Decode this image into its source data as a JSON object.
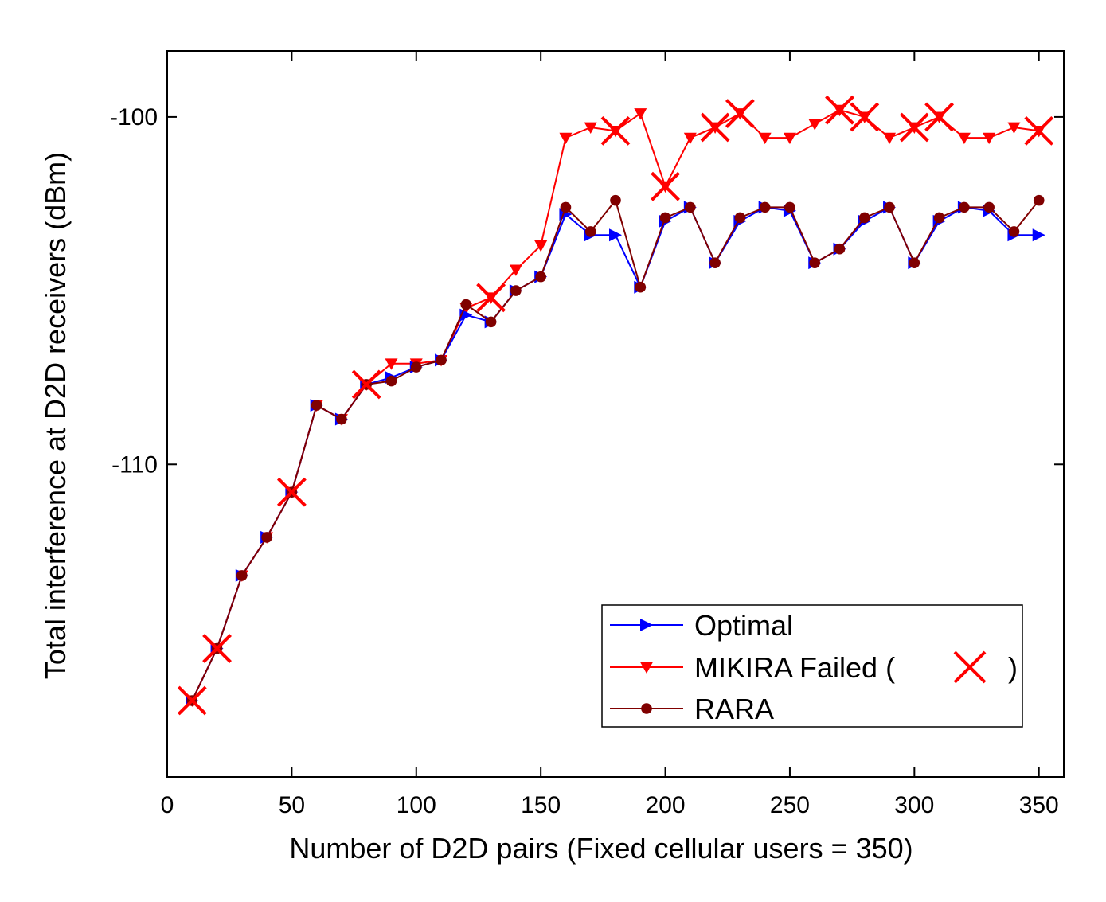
{
  "chart_data": {
    "type": "line",
    "xlabel": "Number of D2D pairs (Fixed cellular users = 350)",
    "ylabel": "Total interference at D2D receivers (dBm)",
    "xlim": [
      0,
      360
    ],
    "ylim": [
      -119,
      -98.1
    ],
    "xticks": [
      0,
      50,
      100,
      150,
      200,
      250,
      300,
      350
    ],
    "yticks": [
      -100,
      -110
    ],
    "grid": false,
    "legend_position": "bottom-right",
    "x": [
      10,
      20,
      30,
      40,
      50,
      60,
      70,
      80,
      90,
      100,
      110,
      120,
      130,
      140,
      150,
      160,
      170,
      180,
      190,
      200,
      210,
      220,
      230,
      240,
      250,
      260,
      270,
      280,
      290,
      300,
      310,
      320,
      330,
      340,
      350
    ],
    "series": [
      {
        "name": "Optimal",
        "color": "#0000ff",
        "marker": "triangle-right",
        "values": [
          -116.8,
          -115.3,
          -113.2,
          -112.1,
          -110.8,
          -108.3,
          -108.7,
          -107.7,
          -107.5,
          -107.2,
          -107.0,
          -105.7,
          -105.9,
          -105.0,
          -104.6,
          -102.8,
          -103.4,
          -103.4,
          -104.9,
          -103.0,
          -102.6,
          -104.2,
          -103.0,
          -102.6,
          -102.7,
          -104.2,
          -103.8,
          -103.0,
          -102.6,
          -104.2,
          -103.0,
          -102.6,
          -102.7,
          -103.4,
          -103.4
        ]
      },
      {
        "name": "MIKIRA Failed (",
        "legend_suffix": ")",
        "color": "#ff0000",
        "marker": "triangle-down",
        "failed_marker": "x",
        "failed_x": [
          10,
          20,
          50,
          80,
          130,
          180,
          200,
          220,
          230,
          270,
          280,
          300,
          310,
          350
        ],
        "values": [
          -116.8,
          -115.3,
          -113.2,
          -112.1,
          -110.8,
          -108.3,
          -108.7,
          -107.7,
          -107.1,
          -107.1,
          -107.0,
          -105.5,
          -105.2,
          -104.4,
          -103.7,
          -100.6,
          -100.3,
          -100.4,
          -99.9,
          -102.0,
          -100.6,
          -100.3,
          -99.9,
          -100.6,
          -100.6,
          -100.2,
          -99.8,
          -100.0,
          -100.6,
          -100.3,
          -100.0,
          -100.6,
          -100.6,
          -100.3,
          -100.4
        ]
      },
      {
        "name": "RARA",
        "color": "#800000",
        "marker": "circle",
        "values": [
          -116.8,
          -115.3,
          -113.2,
          -112.1,
          -110.8,
          -108.3,
          -108.7,
          -107.7,
          -107.6,
          -107.2,
          -107.0,
          -105.4,
          -105.9,
          -105.0,
          -104.6,
          -102.6,
          -103.3,
          -102.4,
          -104.9,
          -102.9,
          -102.6,
          -104.2,
          -102.9,
          -102.6,
          -102.6,
          -104.2,
          -103.8,
          -102.9,
          -102.6,
          -104.2,
          -102.9,
          -102.6,
          -102.6,
          -103.3,
          -102.4
        ]
      }
    ]
  }
}
